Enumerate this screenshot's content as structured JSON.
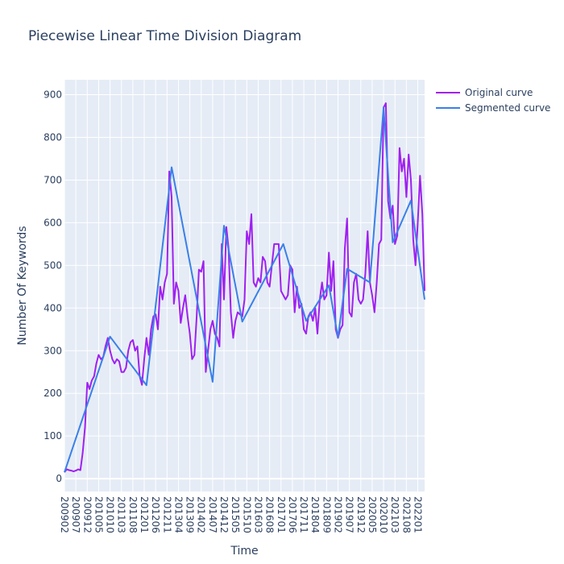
{
  "chart_data": {
    "type": "line",
    "title": "Piecewise Linear Time Division Diagram",
    "xlabel": "Time",
    "ylabel": "Number Of Keywords",
    "x_tick_labels": [
      "200902",
      "200907",
      "200912",
      "201005",
      "201010",
      "201103",
      "201108",
      "201201",
      "201206",
      "201211",
      "201304",
      "201309",
      "201402",
      "201407",
      "201412",
      "201505",
      "201510",
      "201603",
      "201608",
      "201701",
      "201706",
      "201711",
      "201804",
      "201809",
      "201902",
      "201907",
      "201912",
      "202005",
      "202010",
      "202103",
      "202108",
      "202201"
    ],
    "x_tick_start": "200902",
    "x_range": [
      "200902",
      "202204"
    ],
    "ylim": [
      -30,
      935
    ],
    "y_ticks": [
      0,
      100,
      200,
      300,
      400,
      500,
      600,
      700,
      800,
      900
    ],
    "grid": true,
    "legend_position": "top-right outside",
    "colors": {
      "background": "#e5ecf6",
      "grid": "#ffffff",
      "original": "#a020f0",
      "segmented": "#3a80e8"
    },
    "series": [
      {
        "name": "Original curve",
        "color": "#a020f0",
        "x": [
          "200902",
          "200903",
          "200904",
          "200905",
          "200906",
          "200907",
          "200908",
          "200909",
          "200910",
          "200911",
          "200912",
          "201001",
          "201002",
          "201003",
          "201004",
          "201005",
          "201006",
          "201007",
          "201008",
          "201009",
          "201010",
          "201011",
          "201012",
          "201101",
          "201102",
          "201103",
          "201104",
          "201105",
          "201106",
          "201107",
          "201108",
          "201109",
          "201110",
          "201111",
          "201112",
          "201201",
          "201202",
          "201203",
          "201204",
          "201205",
          "201206",
          "201207",
          "201208",
          "201209",
          "201210",
          "201211",
          "201212",
          "201301",
          "201302",
          "201303",
          "201304",
          "201305",
          "201306",
          "201307",
          "201308",
          "201309",
          "201310",
          "201311",
          "201312",
          "201401",
          "201402",
          "201403",
          "201404",
          "201405",
          "201406",
          "201407",
          "201408",
          "201409",
          "201410",
          "201411",
          "201412",
          "201501",
          "201502",
          "201503",
          "201504",
          "201505",
          "201506",
          "201507",
          "201508",
          "201509",
          "201510",
          "201511",
          "201512",
          "201601",
          "201602",
          "201603",
          "201604",
          "201605",
          "201606",
          "201607",
          "201608",
          "201609",
          "201610",
          "201611",
          "201612",
          "201701",
          "201702",
          "201703",
          "201704",
          "201705",
          "201706",
          "201707",
          "201708",
          "201709",
          "201710",
          "201711",
          "201712",
          "201801",
          "201802",
          "201803",
          "201804",
          "201805",
          "201806",
          "201807",
          "201808",
          "201809",
          "201810",
          "201811",
          "201812",
          "201901",
          "201902",
          "201903",
          "201904",
          "201905",
          "201906",
          "201907",
          "201908",
          "201909",
          "201910",
          "201911",
          "201912",
          "202001",
          "202002",
          "202003",
          "202004",
          "202005",
          "202006",
          "202007",
          "202008",
          "202009",
          "202010",
          "202011",
          "202012",
          "202101",
          "202102",
          "202103",
          "202104",
          "202105",
          "202106",
          "202107",
          "202108",
          "202109",
          "202110",
          "202111",
          "202112",
          "202201",
          "202202",
          "202203",
          "202204"
        ],
        "y": [
          15,
          22,
          20,
          19,
          17,
          19,
          22,
          20,
          60,
          120,
          225,
          210,
          230,
          240,
          270,
          290,
          280,
          285,
          310,
          330,
          300,
          280,
          270,
          280,
          275,
          250,
          250,
          260,
          300,
          320,
          325,
          300,
          310,
          240,
          220,
          280,
          330,
          290,
          350,
          380,
          385,
          350,
          450,
          420,
          460,
          480,
          720,
          660,
          410,
          460,
          440,
          365,
          400,
          430,
          380,
          340,
          280,
          290,
          380,
          490,
          485,
          510,
          250,
          300,
          350,
          370,
          340,
          330,
          310,
          550,
          420,
          590,
          540,
          390,
          330,
          370,
          390,
          385,
          380,
          420,
          580,
          550,
          620,
          460,
          450,
          470,
          460,
          520,
          510,
          460,
          450,
          500,
          550,
          550,
          550,
          440,
          430,
          420,
          430,
          500,
          490,
          390,
          450,
          400,
          410,
          350,
          340,
          380,
          390,
          370,
          400,
          340,
          420,
          460,
          420,
          430,
          530,
          440,
          510,
          350,
          330,
          350,
          360,
          540,
          610,
          390,
          380,
          460,
          480,
          420,
          410,
          420,
          480,
          580,
          460,
          430,
          390,
          460,
          550,
          560,
          870,
          880,
          650,
          610,
          640,
          550,
          570,
          775,
          720,
          750,
          660,
          760,
          700,
          560,
          500,
          600,
          710,
          620,
          440
        ]
      },
      {
        "name": "Segmented curve",
        "color": "#3a80e8",
        "x": [
          "200902",
          "201010",
          "201202",
          "201301",
          "201407",
          "201412",
          "201508",
          "201702",
          "201712",
          "201810",
          "201902",
          "201906",
          "202004",
          "202010",
          "202102",
          "202110",
          "202204"
        ],
        "y": [
          15,
          333,
          219,
          730,
          227,
          593,
          368,
          550,
          370,
          453,
          331,
          492,
          460,
          870,
          554,
          652,
          420
        ]
      }
    ]
  }
}
